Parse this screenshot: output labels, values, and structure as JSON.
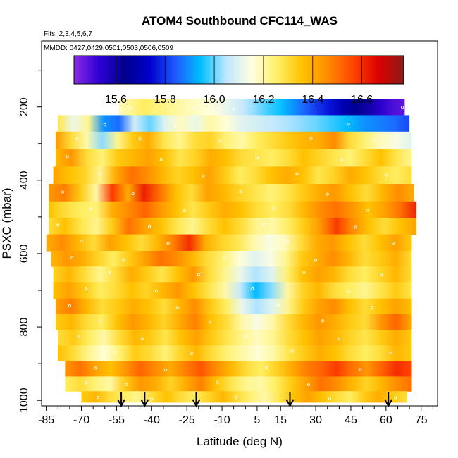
{
  "chart_data": {
    "type": "heatmap",
    "title": "ATOM4 Southbound CFC114_WAS",
    "flights_label": "Flts: 2,3,4,5,6,7",
    "dates_label": "MMDD: 0427,0429,0501,0503,0506,0509",
    "xlabel": "Latitude (deg N)",
    "ylabel": "PSXC (mbar)",
    "xlim": [
      -87,
      82
    ],
    "ylim": [
      1015,
      20
    ],
    "x_ticks": [
      -85,
      -70,
      -55,
      -40,
      -25,
      -10,
      5,
      15,
      30,
      45,
      60,
      75
    ],
    "x_tick_labels": [
      "-85",
      "-70",
      "-55",
      "-40",
      "-25",
      "-10",
      "5",
      "15",
      "30",
      "45",
      "60",
      "75"
    ],
    "y_ticks": [
      200,
      400,
      600,
      800,
      1000
    ],
    "y_tick_labels": [
      "200",
      "400",
      "600",
      "800",
      "1000"
    ],
    "colorbar": {
      "min": 15.43,
      "max": 16.77,
      "ticks": [
        15.6,
        15.8,
        16.0,
        16.2,
        16.4,
        16.6
      ],
      "tick_labels": [
        "15.6",
        "15.8",
        "16.0",
        "16.2",
        "16.4",
        "16.6"
      ],
      "colors": [
        "#8a2be2",
        "#2d00d6",
        "#00008b",
        "#0000cd",
        "#1e5bff",
        "#00bfff",
        "#bfe6ff",
        "#ffffe0",
        "#fff066",
        "#ffc200",
        "#ff8c00",
        "#ff4500",
        "#dd0000",
        "#8b1a1a"
      ]
    },
    "arrow_latitudes": [
      -53,
      -43,
      -21,
      19,
      61
    ],
    "levels": [
      {
        "p": 200,
        "lat_min": -54,
        "lat_max": 68,
        "values": [
          16.18,
          16.22,
          16.26,
          16.24,
          16.22,
          16.2,
          16.18,
          16.16,
          16.14,
          16.1,
          16.06,
          16.02,
          15.98,
          15.95,
          15.9,
          15.85,
          15.8,
          15.76,
          15.7,
          15.65,
          15.6,
          15.55,
          15.5,
          15.48
        ]
      },
      {
        "p": 245,
        "lat_min": -80,
        "lat_max": 70,
        "values": [
          16.28,
          16.12,
          16.22,
          15.9,
          15.86,
          16.08,
          16.0,
          16.1,
          16.18,
          16.12,
          16.2,
          16.16,
          16.1,
          16.08,
          16.06,
          16.04,
          16.02,
          16.0,
          15.97,
          15.94,
          15.9,
          15.88,
          15.86,
          15.82
        ]
      },
      {
        "p": 290,
        "lat_min": -81,
        "lat_max": 71,
        "values": [
          16.44,
          16.3,
          16.2,
          16.02,
          16.22,
          16.34,
          16.4,
          16.28,
          16.22,
          16.3,
          16.32,
          16.24,
          16.2,
          16.26,
          16.3,
          16.34,
          16.38,
          16.4,
          16.46,
          16.3,
          16.24,
          16.18,
          16.14,
          16.1
        ]
      },
      {
        "p": 340,
        "lat_min": -81,
        "lat_max": 71,
        "values": [
          16.38,
          16.44,
          16.3,
          16.24,
          16.34,
          16.38,
          16.42,
          16.36,
          16.28,
          16.32,
          16.4,
          16.36,
          16.3,
          16.28,
          16.26,
          16.3,
          16.36,
          16.32,
          16.28,
          16.24,
          16.3,
          16.36,
          16.28,
          16.22
        ]
      },
      {
        "p": 385,
        "lat_min": -82,
        "lat_max": 71,
        "values": [
          16.42,
          16.36,
          16.32,
          16.22,
          16.4,
          16.5,
          16.46,
          16.38,
          16.32,
          16.36,
          16.42,
          16.34,
          16.26,
          16.3,
          16.36,
          16.4,
          16.36,
          16.28,
          16.32,
          16.4,
          16.36,
          16.3,
          16.26,
          16.3
        ]
      },
      {
        "p": 435,
        "lat_min": -84,
        "lat_max": 72,
        "values": [
          16.44,
          16.48,
          16.34,
          16.2,
          16.58,
          16.4,
          16.62,
          16.5,
          16.36,
          16.3,
          16.42,
          16.38,
          16.32,
          16.28,
          16.24,
          16.28,
          16.34,
          16.4,
          16.44,
          16.36,
          16.3,
          16.38,
          16.46,
          16.4
        ]
      },
      {
        "p": 480,
        "lat_min": -84,
        "lat_max": 73,
        "values": [
          16.36,
          16.3,
          16.26,
          16.24,
          16.4,
          16.46,
          16.52,
          16.44,
          16.36,
          16.28,
          16.34,
          16.4,
          16.36,
          16.3,
          16.26,
          16.3,
          16.38,
          16.46,
          16.5,
          16.44,
          16.36,
          16.42,
          16.5,
          16.62
        ]
      },
      {
        "p": 525,
        "lat_min": -84,
        "lat_max": 73,
        "values": [
          16.3,
          16.36,
          16.28,
          16.22,
          16.34,
          16.5,
          16.42,
          16.36,
          16.28,
          16.22,
          16.3,
          16.36,
          16.3,
          16.22,
          16.2,
          16.26,
          16.34,
          16.44,
          16.58,
          16.46,
          16.36,
          16.3,
          16.36,
          16.42
        ]
      },
      {
        "p": 570,
        "lat_min": -85,
        "lat_max": 71,
        "values": [
          16.4,
          16.46,
          16.38,
          16.3,
          16.42,
          16.36,
          16.3,
          16.38,
          16.48,
          16.6,
          16.4,
          16.32,
          16.28,
          16.2,
          16.14,
          16.18,
          16.3,
          16.4,
          16.44,
          16.36,
          16.3,
          16.36,
          16.42,
          16.34
        ]
      },
      {
        "p": 615,
        "lat_min": -83,
        "lat_max": 71,
        "values": [
          16.38,
          16.44,
          16.4,
          16.32,
          16.26,
          16.34,
          16.42,
          16.5,
          16.46,
          16.38,
          16.3,
          16.24,
          16.16,
          16.1,
          16.14,
          16.22,
          16.34,
          16.4,
          16.46,
          16.38,
          16.3,
          16.34,
          16.4,
          16.3
        ]
      },
      {
        "p": 655,
        "lat_min": -82,
        "lat_max": 71,
        "values": [
          16.32,
          16.38,
          16.3,
          16.22,
          16.3,
          16.4,
          16.34,
          16.28,
          16.36,
          16.44,
          16.3,
          16.22,
          16.12,
          16.04,
          16.1,
          16.24,
          16.36,
          16.42,
          16.38,
          16.3,
          16.26,
          16.32,
          16.38,
          16.3
        ]
      },
      {
        "p": 700,
        "lat_min": -82,
        "lat_max": 71,
        "values": [
          16.36,
          16.42,
          16.34,
          16.26,
          16.3,
          16.36,
          16.32,
          16.38,
          16.44,
          16.36,
          16.28,
          16.2,
          16.06,
          15.94,
          16.02,
          16.2,
          16.32,
          16.38,
          16.3,
          16.26,
          16.22,
          16.28,
          16.34,
          16.28
        ]
      },
      {
        "p": 745,
        "lat_min": -81,
        "lat_max": 71,
        "values": [
          16.42,
          16.48,
          16.38,
          16.3,
          16.34,
          16.4,
          16.36,
          16.3,
          16.38,
          16.46,
          16.34,
          16.26,
          16.12,
          16.04,
          16.1,
          16.22,
          16.34,
          16.42,
          16.46,
          16.36,
          16.3,
          16.36,
          16.42,
          16.36
        ]
      },
      {
        "p": 785,
        "lat_min": -81,
        "lat_max": 71,
        "values": [
          16.34,
          16.38,
          16.3,
          16.26,
          16.36,
          16.44,
          16.38,
          16.32,
          16.4,
          16.48,
          16.36,
          16.3,
          16.2,
          16.14,
          16.2,
          16.3,
          16.38,
          16.44,
          16.4,
          16.34,
          16.3,
          16.44,
          16.52,
          16.4
        ]
      },
      {
        "p": 830,
        "lat_min": -80,
        "lat_max": 71,
        "values": [
          16.3,
          16.34,
          16.26,
          16.2,
          16.3,
          16.38,
          16.34,
          16.28,
          16.36,
          16.42,
          16.34,
          16.28,
          16.22,
          16.18,
          16.22,
          16.3,
          16.36,
          16.42,
          16.38,
          16.32,
          16.28,
          16.34,
          16.4,
          16.34
        ]
      },
      {
        "p": 870,
        "lat_min": -80,
        "lat_max": 71,
        "values": [
          16.36,
          16.3,
          16.22,
          16.16,
          16.24,
          16.34,
          16.3,
          16.24,
          16.32,
          16.38,
          16.3,
          16.24,
          16.2,
          16.16,
          16.2,
          16.28,
          16.34,
          16.4,
          16.36,
          16.3,
          16.26,
          16.3,
          16.38,
          16.34
        ]
      },
      {
        "p": 915,
        "lat_min": -77,
        "lat_max": 71,
        "values": [
          16.44,
          16.5,
          16.42,
          16.36,
          16.44,
          16.52,
          16.46,
          16.4,
          16.48,
          16.54,
          16.46,
          16.38,
          16.3,
          16.26,
          16.32,
          16.4,
          16.48,
          16.52,
          16.58,
          16.5,
          16.44,
          16.52,
          16.6,
          16.56
        ]
      },
      {
        "p": 955,
        "lat_min": -77,
        "lat_max": 71,
        "values": [
          16.26,
          16.3,
          16.24,
          16.2,
          16.34,
          16.44,
          16.4,
          16.32,
          16.4,
          16.48,
          16.36,
          16.28,
          16.22,
          16.2,
          16.26,
          16.34,
          16.42,
          16.5,
          16.46,
          16.38,
          16.32,
          16.38,
          16.46,
          16.5
        ]
      },
      {
        "p": 995,
        "lat_min": -70,
        "lat_max": 69,
        "values": [
          16.34,
          16.38,
          16.3,
          16.26,
          16.22,
          16.3,
          16.36,
          16.3,
          16.26,
          16.32,
          16.38,
          16.3,
          16.24,
          16.2,
          16.28,
          16.36,
          16.42,
          16.36,
          16.3,
          16.26,
          16.34,
          16.4,
          16.34,
          16.3
        ]
      }
    ],
    "sample_points": [
      {
        "lat": 67,
        "p": 201
      },
      {
        "lat": 69,
        "p": 201
      },
      {
        "lat": -49,
        "p": 205
      },
      {
        "lat": -22,
        "p": 202
      },
      {
        "lat": -5,
        "p": 206
      },
      {
        "lat": -60,
        "p": 248
      },
      {
        "lat": -30,
        "p": 252
      },
      {
        "lat": 44,
        "p": 247
      },
      {
        "lat": -72,
        "p": 286
      },
      {
        "lat": -45,
        "p": 288
      },
      {
        "lat": -11,
        "p": 293
      },
      {
        "lat": 28,
        "p": 287
      },
      {
        "lat": 55,
        "p": 290
      },
      {
        "lat": -76,
        "p": 336
      },
      {
        "lat": -36,
        "p": 343
      },
      {
        "lat": 5,
        "p": 338
      },
      {
        "lat": 41,
        "p": 344
      },
      {
        "lat": -62,
        "p": 383
      },
      {
        "lat": -18,
        "p": 388
      },
      {
        "lat": 22,
        "p": 382
      },
      {
        "lat": 60,
        "p": 386
      },
      {
        "lat": -78,
        "p": 432
      },
      {
        "lat": -48,
        "p": 437
      },
      {
        "lat": -2,
        "p": 431
      },
      {
        "lat": 35,
        "p": 438
      },
      {
        "lat": -66,
        "p": 478
      },
      {
        "lat": -26,
        "p": 483
      },
      {
        "lat": 12,
        "p": 477
      },
      {
        "lat": 52,
        "p": 482
      },
      {
        "lat": -80,
        "p": 522
      },
      {
        "lat": -41,
        "p": 527
      },
      {
        "lat": 8,
        "p": 521
      },
      {
        "lat": 47,
        "p": 528
      },
      {
        "lat": -70,
        "p": 566
      },
      {
        "lat": -33,
        "p": 572
      },
      {
        "lat": 18,
        "p": 567
      },
      {
        "lat": 63,
        "p": 571
      },
      {
        "lat": -74,
        "p": 612
      },
      {
        "lat": -52,
        "p": 617
      },
      {
        "lat": -9,
        "p": 611
      },
      {
        "lat": 30,
        "p": 618
      },
      {
        "lat": -58,
        "p": 652
      },
      {
        "lat": -20,
        "p": 657
      },
      {
        "lat": 25,
        "p": 651
      },
      {
        "lat": 58,
        "p": 656
      },
      {
        "lat": -68,
        "p": 697
      },
      {
        "lat": -38,
        "p": 702
      },
      {
        "lat": 3,
        "p": 696
      },
      {
        "lat": 44,
        "p": 703
      },
      {
        "lat": -75,
        "p": 742
      },
      {
        "lat": -29,
        "p": 747
      },
      {
        "lat": 14,
        "p": 741
      },
      {
        "lat": 54,
        "p": 746
      },
      {
        "lat": -62,
        "p": 782
      },
      {
        "lat": -15,
        "p": 787
      },
      {
        "lat": 33,
        "p": 783
      },
      {
        "lat": -71,
        "p": 827
      },
      {
        "lat": -44,
        "p": 832
      },
      {
        "lat": 0,
        "p": 826
      },
      {
        "lat": 40,
        "p": 833
      },
      {
        "lat": -56,
        "p": 867
      },
      {
        "lat": -23,
        "p": 872
      },
      {
        "lat": 20,
        "p": 866
      },
      {
        "lat": 62,
        "p": 871
      },
      {
        "lat": -64,
        "p": 912
      },
      {
        "lat": -34,
        "p": 917
      },
      {
        "lat": 9,
        "p": 911
      },
      {
        "lat": 49,
        "p": 916
      },
      {
        "lat": -68,
        "p": 952
      },
      {
        "lat": -51,
        "p": 957
      },
      {
        "lat": -12,
        "p": 951
      },
      {
        "lat": 27,
        "p": 958
      },
      {
        "lat": -63,
        "p": 992
      },
      {
        "lat": -40,
        "p": 997
      },
      {
        "lat": -4,
        "p": 991
      },
      {
        "lat": 36,
        "p": 996
      },
      {
        "lat": 64,
        "p": 993
      }
    ]
  }
}
